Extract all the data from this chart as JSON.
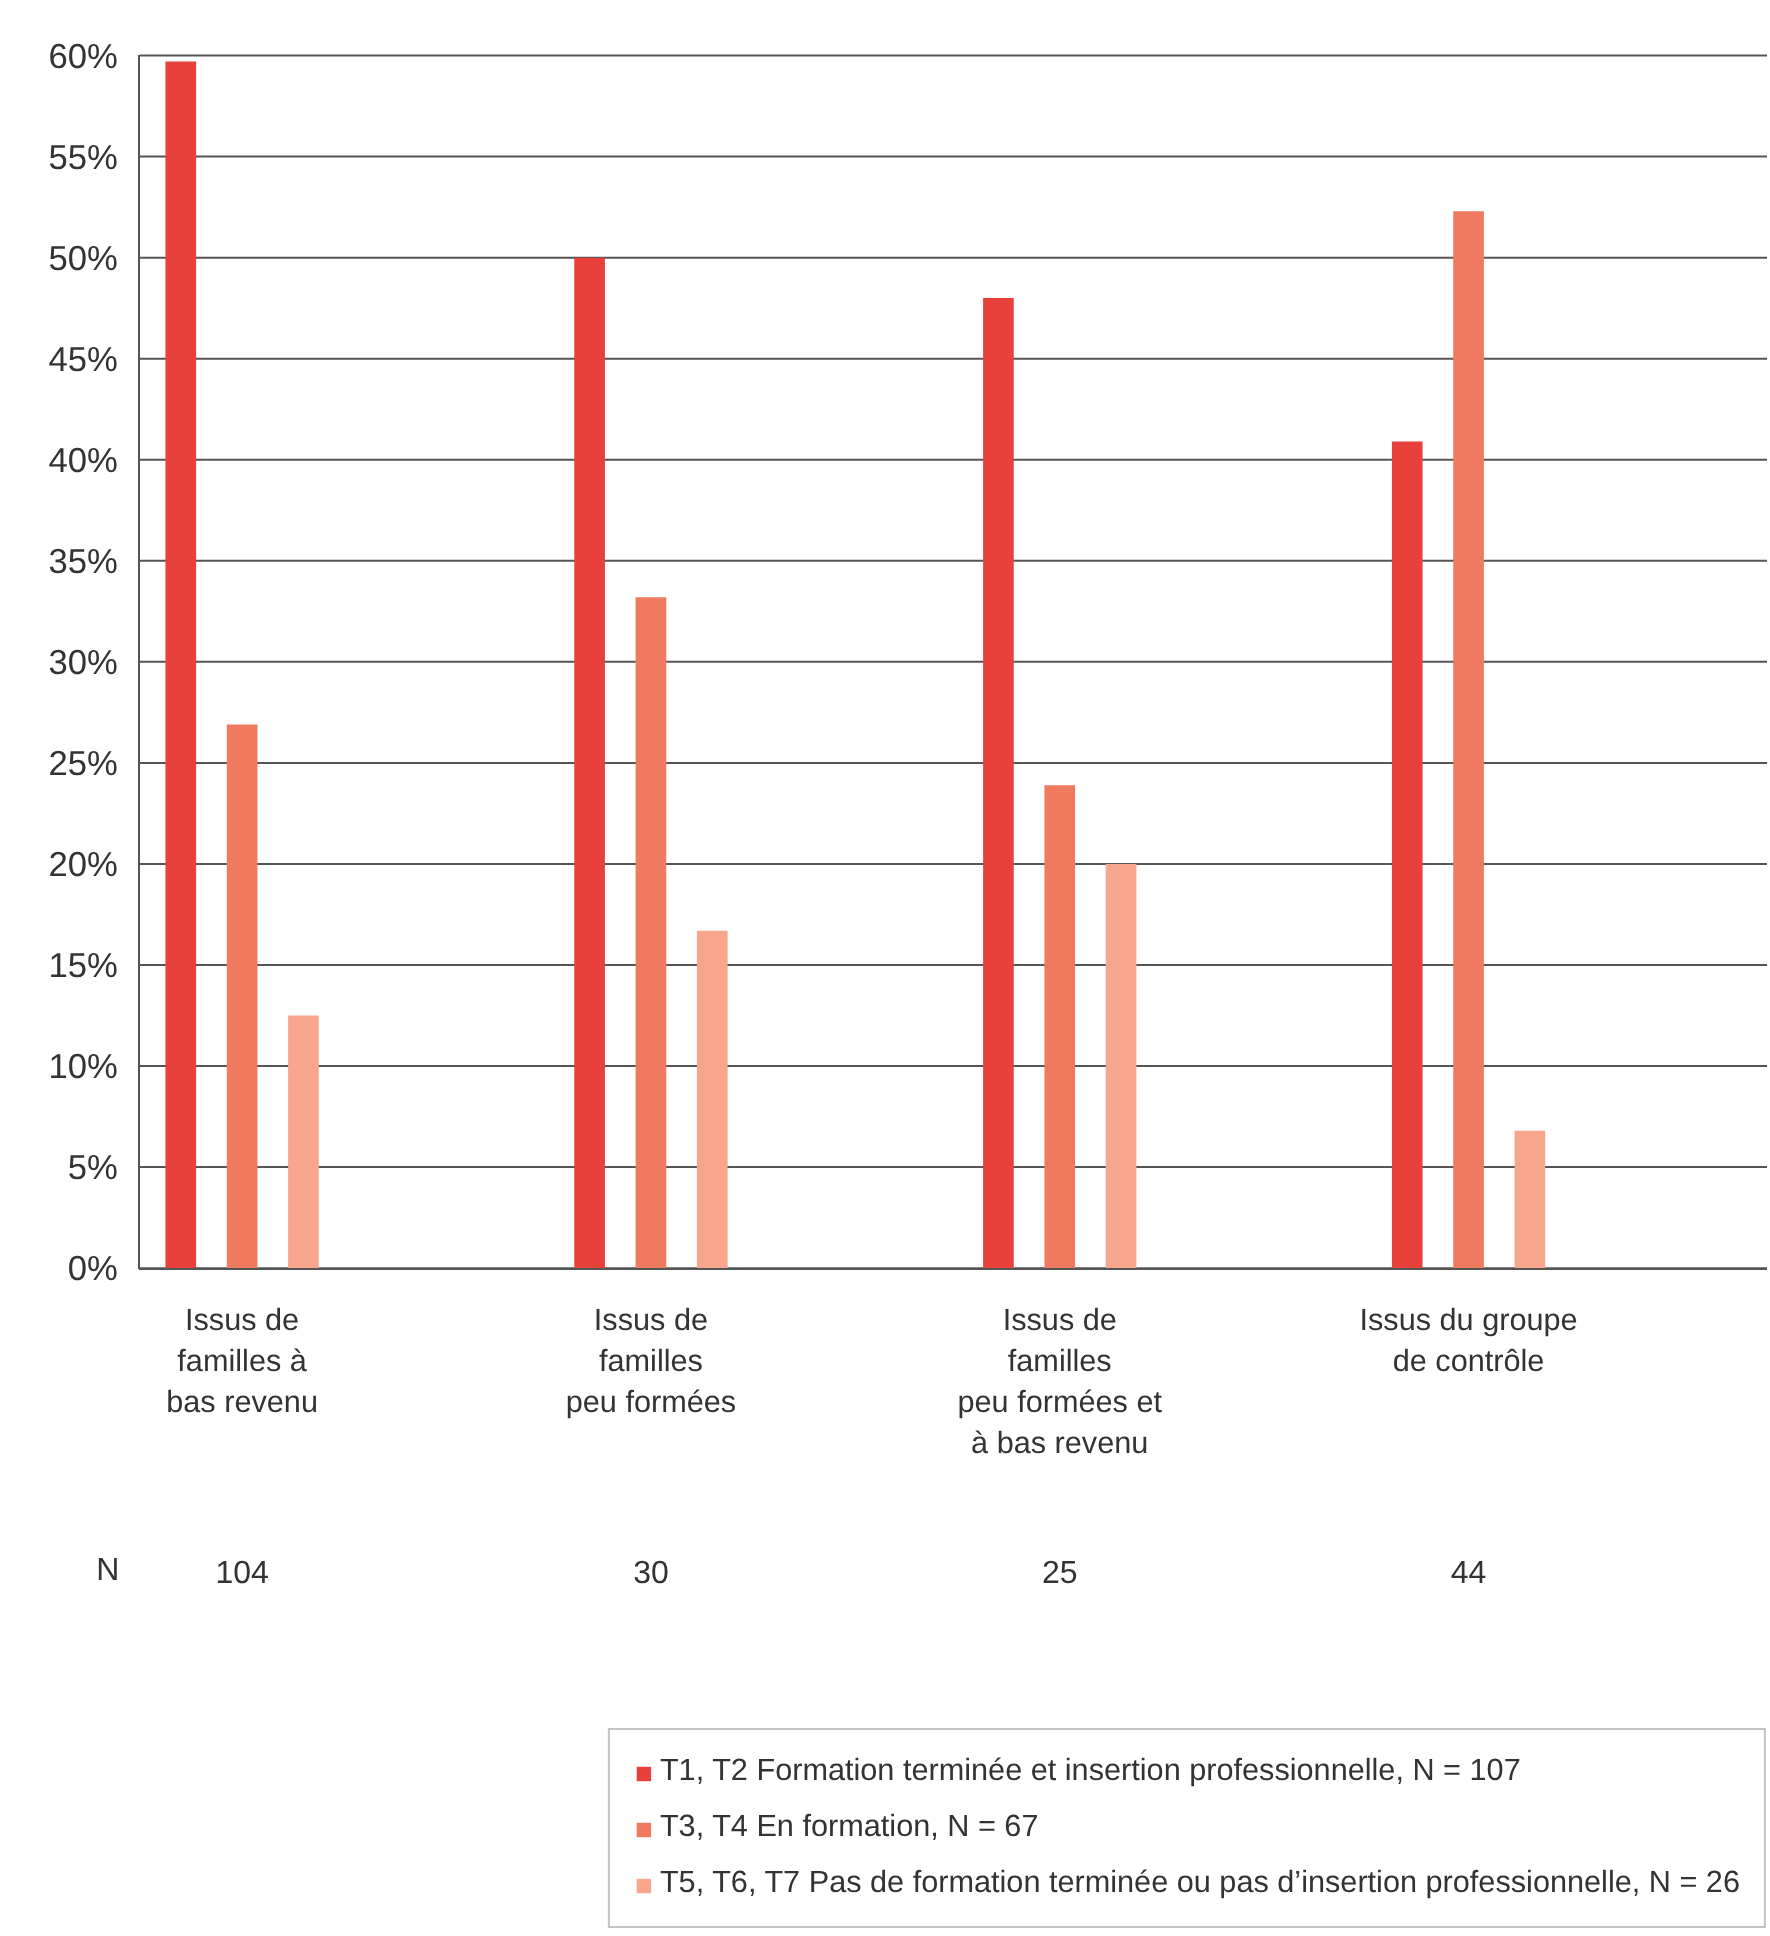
{
  "chart_data": {
    "type": "bar",
    "categories": [
      "Issus de\nfamilles à\nbas revenu",
      "Issus de\nfamilles\npeu formées",
      "Issus de\nfamilles\npeu formées et\nà bas revenu",
      "Issus du groupe\nde contrôle"
    ],
    "series": [
      {
        "name": "T1, T2 Formation terminée et insertion professionnelle, N = 107",
        "color": "#e8403a",
        "values": [
          59.7,
          50.0,
          48.0,
          40.9
        ]
      },
      {
        "name": "T3, T4 En formation, N = 67",
        "color": "#f07a5f",
        "values": [
          26.9,
          33.2,
          23.9,
          52.3
        ]
      },
      {
        "name": "T5, T6, T7 Pas de formation terminée ou pas d’insertion professionnelle, N = 26",
        "color": "#f7a58c",
        "values": [
          12.5,
          16.7,
          20.0,
          6.8
        ]
      }
    ],
    "ylim": [
      0,
      60
    ],
    "yticks": [
      {
        "value": 0,
        "label": "0%"
      },
      {
        "value": 5,
        "label": "5%"
      },
      {
        "value": 10,
        "label": "10%"
      },
      {
        "value": 15,
        "label": "15%"
      },
      {
        "value": 20,
        "label": "20%"
      },
      {
        "value": 25,
        "label": "25%"
      },
      {
        "value": 30,
        "label": "30%"
      },
      {
        "value": 35,
        "label": "35%"
      },
      {
        "value": 40,
        "label": "40%"
      },
      {
        "value": 45,
        "label": "45%"
      },
      {
        "value": 50,
        "label": "50%"
      },
      {
        "value": 55,
        "label": "55%"
      },
      {
        "value": 60,
        "label": "60%"
      }
    ],
    "annotations": [
      "N",
      "104",
      "30",
      "25",
      "44"
    ],
    "grid": "y",
    "legend": "bottom"
  }
}
